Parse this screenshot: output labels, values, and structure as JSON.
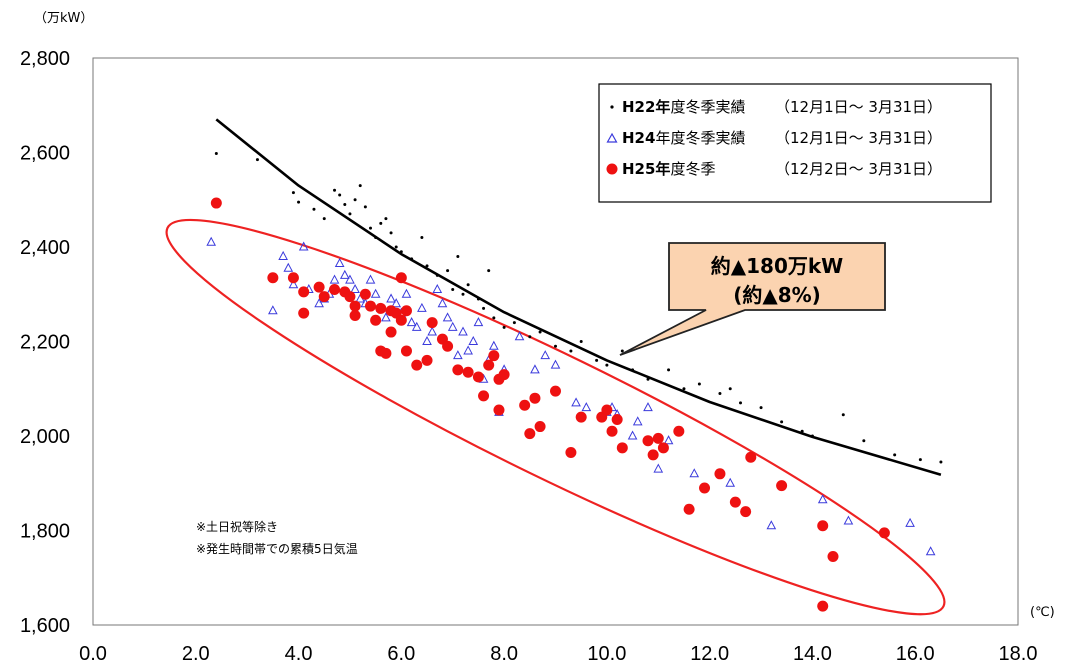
{
  "chart_data": {
    "type": "scatter",
    "title": "",
    "y_unit_label": "（万kW）",
    "x_unit_label": "(℃)",
    "xlim": [
      0,
      18
    ],
    "ylim": [
      1600,
      2800
    ],
    "x_ticks": [
      "0.0",
      "2.0",
      "4.0",
      "6.0",
      "8.0",
      "10.0",
      "12.0",
      "14.0",
      "16.0",
      "18.0"
    ],
    "y_ticks": [
      "1,600",
      "1,800",
      "2,000",
      "2,200",
      "2,400",
      "2,600",
      "2,800"
    ],
    "grid": false,
    "legend_position": "top-right",
    "legend": [
      {
        "bold": "H22年",
        "rest": "度冬季実績",
        "period": "（12月1日～ 3月31日）"
      },
      {
        "bold": "H24",
        "rest": "年度冬季実績",
        "period": "（12月1日～ 3月31日）"
      },
      {
        "bold": "H25年",
        "rest": "度冬季",
        "period": "（12月2日～ 3月31日）"
      }
    ],
    "notes": [
      "※土日祝等除き",
      "※発生時間帯での累積5日気温"
    ],
    "callout": {
      "line1": "約▲180万kW",
      "line2": "(約▲8%)"
    },
    "colors": {
      "h22": "#000000",
      "h24": "#3a3adc",
      "h25": "#ee1111",
      "trend": "#000000",
      "ellipse": "#ee2222",
      "callout_fill": "#fbd3b0",
      "callout_stroke": "#222222"
    },
    "trend_line": {
      "name": "H22年度冬季実績 近似曲線",
      "x": [
        2.4,
        4,
        6,
        8,
        10,
        12,
        14,
        16.5
      ],
      "y": [
        2670,
        2530,
        2385,
        2262,
        2160,
        2072,
        1998,
        1918
      ]
    },
    "ellipse_region": {
      "center": [
        9.0,
        2040
      ],
      "rx_deg": 8.4,
      "ry_mw": 130,
      "angle_deg": 26
    },
    "series": [
      {
        "name": "H22年度冬季実績（12月1日～ 3月31日）",
        "marker": "dot",
        "points": [
          [
            2.4,
            2598
          ],
          [
            3.2,
            2585
          ],
          [
            3.9,
            2515
          ],
          [
            4.0,
            2495
          ],
          [
            4.3,
            2480
          ],
          [
            4.5,
            2460
          ],
          [
            4.7,
            2520
          ],
          [
            4.8,
            2510
          ],
          [
            4.9,
            2490
          ],
          [
            5.0,
            2470
          ],
          [
            5.1,
            2500
          ],
          [
            5.2,
            2530
          ],
          [
            5.3,
            2485
          ],
          [
            5.4,
            2440
          ],
          [
            5.5,
            2420
          ],
          [
            5.6,
            2450
          ],
          [
            5.7,
            2460
          ],
          [
            5.8,
            2430
          ],
          [
            5.9,
            2400
          ],
          [
            6.0,
            2390
          ],
          [
            6.2,
            2375
          ],
          [
            6.4,
            2420
          ],
          [
            6.5,
            2360
          ],
          [
            6.7,
            2340
          ],
          [
            6.9,
            2350
          ],
          [
            7.0,
            2310
          ],
          [
            7.1,
            2380
          ],
          [
            7.2,
            2300
          ],
          [
            7.3,
            2320
          ],
          [
            7.5,
            2290
          ],
          [
            7.6,
            2270
          ],
          [
            7.7,
            2350
          ],
          [
            7.8,
            2250
          ],
          [
            8.0,
            2230
          ],
          [
            8.2,
            2240
          ],
          [
            8.5,
            2210
          ],
          [
            8.7,
            2220
          ],
          [
            9.0,
            2190
          ],
          [
            9.3,
            2180
          ],
          [
            9.5,
            2200
          ],
          [
            9.8,
            2160
          ],
          [
            10.0,
            2150
          ],
          [
            10.3,
            2180
          ],
          [
            10.5,
            2140
          ],
          [
            10.8,
            2120
          ],
          [
            11.2,
            2140
          ],
          [
            11.5,
            2100
          ],
          [
            11.8,
            2110
          ],
          [
            12.2,
            2090
          ],
          [
            12.4,
            2100
          ],
          [
            12.6,
            2070
          ],
          [
            13.0,
            2060
          ],
          [
            13.4,
            2030
          ],
          [
            13.8,
            2010
          ],
          [
            14.0,
            2000
          ],
          [
            14.6,
            2045
          ],
          [
            15.0,
            1990
          ],
          [
            15.6,
            1960
          ],
          [
            16.1,
            1950
          ],
          [
            16.5,
            1945
          ]
        ]
      },
      {
        "name": "H24年度冬季実績（12月1日～ 3月31日）",
        "marker": "triangle",
        "points": [
          [
            2.3,
            2410
          ],
          [
            3.5,
            2265
          ],
          [
            3.7,
            2380
          ],
          [
            3.8,
            2355
          ],
          [
            3.9,
            2320
          ],
          [
            4.1,
            2400
          ],
          [
            4.2,
            2310
          ],
          [
            4.4,
            2280
          ],
          [
            4.5,
            2290
          ],
          [
            4.6,
            2300
          ],
          [
            4.7,
            2330
          ],
          [
            4.8,
            2365
          ],
          [
            4.9,
            2340
          ],
          [
            5.0,
            2330
          ],
          [
            5.1,
            2310
          ],
          [
            5.2,
            2290
          ],
          [
            5.3,
            2280
          ],
          [
            5.4,
            2330
          ],
          [
            5.5,
            2300
          ],
          [
            5.6,
            2270
          ],
          [
            5.7,
            2250
          ],
          [
            5.8,
            2290
          ],
          [
            5.9,
            2280
          ],
          [
            6.0,
            2260
          ],
          [
            6.1,
            2300
          ],
          [
            6.2,
            2240
          ],
          [
            6.3,
            2230
          ],
          [
            6.4,
            2270
          ],
          [
            6.5,
            2200
          ],
          [
            6.6,
            2220
          ],
          [
            6.7,
            2310
          ],
          [
            6.8,
            2280
          ],
          [
            6.9,
            2250
          ],
          [
            7.0,
            2230
          ],
          [
            7.1,
            2170
          ],
          [
            7.2,
            2220
          ],
          [
            7.3,
            2180
          ],
          [
            7.4,
            2200
          ],
          [
            7.5,
            2240
          ],
          [
            7.6,
            2120
          ],
          [
            7.7,
            2160
          ],
          [
            7.8,
            2190
          ],
          [
            7.9,
            2050
          ],
          [
            8.0,
            2140
          ],
          [
            8.3,
            2210
          ],
          [
            8.6,
            2140
          ],
          [
            8.8,
            2170
          ],
          [
            9.0,
            2150
          ],
          [
            9.4,
            2070
          ],
          [
            9.6,
            2060
          ],
          [
            10.0,
            2050
          ],
          [
            10.1,
            2060
          ],
          [
            10.2,
            2045
          ],
          [
            10.5,
            2000
          ],
          [
            10.6,
            2030
          ],
          [
            10.8,
            2060
          ],
          [
            11.2,
            1990
          ],
          [
            11.0,
            1930
          ],
          [
            11.7,
            1920
          ],
          [
            12.4,
            1900
          ],
          [
            13.2,
            1810
          ],
          [
            14.2,
            1865
          ],
          [
            14.7,
            1820
          ],
          [
            15.9,
            1815
          ],
          [
            16.3,
            1755
          ]
        ]
      },
      {
        "name": "H25年度冬季（12月2日～ 3月31日）",
        "marker": "circle",
        "points": [
          [
            2.4,
            2493
          ],
          [
            3.5,
            2335
          ],
          [
            3.9,
            2335
          ],
          [
            4.1,
            2305
          ],
          [
            4.1,
            2260
          ],
          [
            4.4,
            2315
          ],
          [
            4.5,
            2295
          ],
          [
            4.7,
            2310
          ],
          [
            4.9,
            2305
          ],
          [
            5.0,
            2295
          ],
          [
            5.1,
            2275
          ],
          [
            5.1,
            2255
          ],
          [
            5.3,
            2300
          ],
          [
            5.4,
            2275
          ],
          [
            5.5,
            2245
          ],
          [
            5.6,
            2270
          ],
          [
            5.6,
            2180
          ],
          [
            5.7,
            2175
          ],
          [
            5.8,
            2265
          ],
          [
            5.8,
            2220
          ],
          [
            5.9,
            2260
          ],
          [
            6.0,
            2335
          ],
          [
            6.0,
            2245
          ],
          [
            6.1,
            2265
          ],
          [
            6.1,
            2180
          ],
          [
            6.3,
            2150
          ],
          [
            6.5,
            2160
          ],
          [
            6.6,
            2240
          ],
          [
            6.8,
            2205
          ],
          [
            6.9,
            2190
          ],
          [
            7.1,
            2140
          ],
          [
            7.3,
            2135
          ],
          [
            7.5,
            2125
          ],
          [
            7.6,
            2085
          ],
          [
            7.7,
            2150
          ],
          [
            7.8,
            2170
          ],
          [
            7.9,
            2120
          ],
          [
            8.0,
            2130
          ],
          [
            7.9,
            2055
          ],
          [
            8.4,
            2065
          ],
          [
            8.5,
            2005
          ],
          [
            8.6,
            2080
          ],
          [
            8.7,
            2020
          ],
          [
            9.0,
            2095
          ],
          [
            9.3,
            1965
          ],
          [
            9.5,
            2040
          ],
          [
            9.9,
            2040
          ],
          [
            10.0,
            2055
          ],
          [
            10.1,
            2010
          ],
          [
            10.2,
            2035
          ],
          [
            10.3,
            1975
          ],
          [
            10.8,
            1990
          ],
          [
            10.9,
            1960
          ],
          [
            11.0,
            1995
          ],
          [
            11.1,
            1975
          ],
          [
            11.4,
            2010
          ],
          [
            11.6,
            1845
          ],
          [
            11.9,
            1890
          ],
          [
            12.2,
            1920
          ],
          [
            12.5,
            1860
          ],
          [
            12.7,
            1840
          ],
          [
            12.8,
            1955
          ],
          [
            13.4,
            1895
          ],
          [
            14.2,
            1810
          ],
          [
            14.4,
            1745
          ],
          [
            14.2,
            1640
          ],
          [
            15.4,
            1795
          ]
        ]
      }
    ]
  }
}
